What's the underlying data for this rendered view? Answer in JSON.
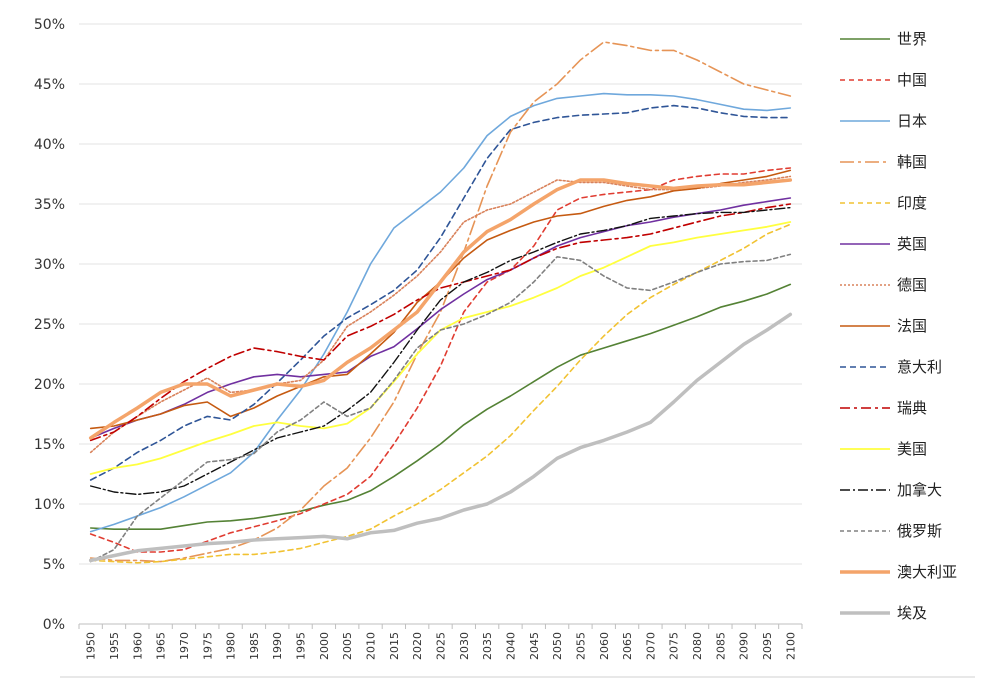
{
  "chart_data": {
    "type": "line",
    "title": "",
    "xlabel": "",
    "ylabel": "",
    "ylim": [
      0,
      50
    ],
    "y_ticks": [
      "0%",
      "5%",
      "10%",
      "15%",
      "20%",
      "25%",
      "30%",
      "35%",
      "40%",
      "45%",
      "50%"
    ],
    "x": [
      1950,
      1955,
      1960,
      1965,
      1970,
      1975,
      1980,
      1985,
      1990,
      1995,
      2000,
      2005,
      2010,
      2015,
      2020,
      2025,
      2030,
      2035,
      2040,
      2045,
      2050,
      2055,
      2060,
      2065,
      2070,
      2075,
      2080,
      2085,
      2090,
      2095,
      2100
    ],
    "grid": true,
    "legend_position": "right",
    "series": [
      {
        "name": "世界",
        "color": "#548235",
        "dash": "solid",
        "width": 1.6,
        "values": [
          8.0,
          7.9,
          7.9,
          7.9,
          8.2,
          8.5,
          8.6,
          8.8,
          9.1,
          9.4,
          9.9,
          10.3,
          11.1,
          12.3,
          13.6,
          15.0,
          16.6,
          17.9,
          19.0,
          20.2,
          21.4,
          22.4,
          23.0,
          23.6,
          24.2,
          24.9,
          25.6,
          26.4,
          26.9,
          27.5,
          28.3
        ]
      },
      {
        "name": "中国",
        "color": "#e03c31",
        "dash": "5,4",
        "width": 1.6,
        "values": [
          7.5,
          6.8,
          6.0,
          6.0,
          6.2,
          6.9,
          7.6,
          8.1,
          8.6,
          9.2,
          10.0,
          10.8,
          12.3,
          15.0,
          18.0,
          21.5,
          26.0,
          28.5,
          29.5,
          31.5,
          34.5,
          35.5,
          35.8,
          36.0,
          36.2,
          37.0,
          37.3,
          37.5,
          37.5,
          37.8,
          38.0
        ]
      },
      {
        "name": "日本",
        "color": "#6fa8dc",
        "dash": "solid",
        "width": 1.6,
        "values": [
          7.7,
          8.3,
          9.0,
          9.7,
          10.6,
          11.6,
          12.6,
          14.3,
          17.0,
          19.5,
          22.5,
          26.0,
          30.0,
          33.0,
          34.5,
          36.0,
          38.0,
          40.7,
          42.3,
          43.2,
          43.8,
          44.0,
          44.2,
          44.1,
          44.1,
          44.0,
          43.7,
          43.3,
          42.9,
          42.8,
          43.0
        ]
      },
      {
        "name": "韩国",
        "color": "#e69456",
        "dash": "14,4,3,4",
        "width": 1.6,
        "values": [
          5.5,
          5.3,
          5.3,
          5.2,
          5.5,
          5.9,
          6.3,
          7.0,
          8.0,
          9.5,
          11.5,
          13.0,
          15.5,
          18.5,
          22.5,
          26.0,
          31.0,
          36.5,
          41.0,
          43.5,
          45.0,
          47.0,
          48.5,
          48.2,
          47.8,
          47.8,
          47.0,
          46.0,
          45.0,
          44.5,
          44.0
        ]
      },
      {
        "name": "印度",
        "color": "#f1c232",
        "dash": "5,4",
        "width": 1.6,
        "values": [
          5.3,
          5.2,
          5.1,
          5.2,
          5.4,
          5.6,
          5.8,
          5.8,
          6.0,
          6.3,
          6.8,
          7.3,
          7.9,
          9.0,
          10.0,
          11.2,
          12.6,
          14.0,
          15.7,
          17.8,
          19.8,
          22.0,
          24.0,
          25.8,
          27.2,
          28.3,
          29.3,
          30.3,
          31.3,
          32.5,
          33.3
        ]
      },
      {
        "name": "英国",
        "color": "#7030a0",
        "dash": "solid",
        "width": 1.6,
        "values": [
          15.5,
          16.3,
          17.0,
          17.5,
          18.3,
          19.3,
          20.0,
          20.6,
          20.8,
          20.6,
          20.8,
          21.0,
          22.3,
          23.1,
          24.6,
          26.2,
          27.5,
          28.7,
          29.5,
          30.5,
          31.5,
          32.2,
          32.7,
          33.2,
          33.5,
          33.9,
          34.2,
          34.5,
          34.9,
          35.2,
          35.5
        ]
      },
      {
        "name": "德国",
        "color": "#d9825b",
        "dash": "2,2",
        "width": 1.6,
        "values": [
          14.3,
          16.0,
          17.3,
          18.5,
          19.5,
          20.5,
          19.3,
          19.5,
          20.0,
          20.3,
          22.0,
          24.8,
          26.0,
          27.4,
          29.0,
          31.0,
          33.5,
          34.5,
          35.0,
          36.0,
          37.0,
          36.8,
          36.8,
          36.5,
          36.2,
          36.2,
          36.3,
          36.5,
          36.8,
          37.0,
          37.3
        ]
      },
      {
        "name": "法国",
        "color": "#c55a11",
        "dash": "solid",
        "width": 1.6,
        "values": [
          16.3,
          16.5,
          17.0,
          17.5,
          18.2,
          18.5,
          17.3,
          18.0,
          19.0,
          19.8,
          20.6,
          20.8,
          22.5,
          24.3,
          26.8,
          28.5,
          30.5,
          32.0,
          32.8,
          33.5,
          34.0,
          34.2,
          34.8,
          35.3,
          35.6,
          36.1,
          36.3,
          36.7,
          37.0,
          37.3,
          37.8
        ]
      },
      {
        "name": "意大利",
        "color": "#2f5597",
        "dash": "6,4",
        "width": 1.6,
        "values": [
          12.0,
          13.0,
          14.3,
          15.3,
          16.5,
          17.3,
          17.0,
          18.3,
          20.1,
          22.0,
          24.0,
          25.5,
          26.6,
          27.8,
          29.5,
          32.2,
          35.5,
          38.8,
          41.2,
          41.8,
          42.2,
          42.4,
          42.5,
          42.6,
          43.0,
          43.2,
          43.0,
          42.6,
          42.3,
          42.2,
          42.2
        ]
      },
      {
        "name": "瑞典",
        "color": "#c00000",
        "dash": "10,4,3,4",
        "width": 1.6,
        "values": [
          15.3,
          16.0,
          17.3,
          18.8,
          20.2,
          21.3,
          22.3,
          23.0,
          22.7,
          22.3,
          22.0,
          24.0,
          24.8,
          25.8,
          27.0,
          28.0,
          28.5,
          29.0,
          29.5,
          30.5,
          31.3,
          31.8,
          32.0,
          32.2,
          32.5,
          33.0,
          33.5,
          34.0,
          34.3,
          34.7,
          35.0
        ]
      },
      {
        "name": "美国",
        "color": "#ffff3f",
        "dash": "solid",
        "width": 1.8,
        "values": [
          12.5,
          13.0,
          13.3,
          13.8,
          14.5,
          15.2,
          15.8,
          16.5,
          16.8,
          16.5,
          16.3,
          16.7,
          18.0,
          20.2,
          22.5,
          24.5,
          25.5,
          26.0,
          26.5,
          27.2,
          28.0,
          29.0,
          29.7,
          30.6,
          31.5,
          31.8,
          32.2,
          32.5,
          32.8,
          33.1,
          33.5
        ]
      },
      {
        "name": "加拿大",
        "color": "#111111",
        "dash": "10,3,2,3",
        "width": 1.4,
        "values": [
          11.5,
          11.0,
          10.8,
          11.0,
          11.5,
          12.5,
          13.5,
          14.5,
          15.5,
          16.0,
          16.5,
          17.8,
          19.3,
          21.8,
          24.5,
          27.0,
          28.5,
          29.3,
          30.3,
          31.0,
          31.8,
          32.5,
          32.8,
          33.2,
          33.8,
          34.0,
          34.2,
          34.3,
          34.3,
          34.5,
          34.7
        ]
      },
      {
        "name": "俄罗斯",
        "color": "#808080",
        "dash": "4,3",
        "width": 1.6,
        "values": [
          5.2,
          6.2,
          9.0,
          10.5,
          12.0,
          13.5,
          13.7,
          14.2,
          16.0,
          17.0,
          18.5,
          17.3,
          18.0,
          20.3,
          23.0,
          24.5,
          25.0,
          25.8,
          26.8,
          28.5,
          30.6,
          30.3,
          29.0,
          28.0,
          27.8,
          28.5,
          29.3,
          30.0,
          30.2,
          30.3,
          30.8
        ]
      },
      {
        "name": "澳大利亚",
        "color": "#f4a46a",
        "dash": "solid",
        "width": 3.5,
        "values": [
          15.5,
          16.8,
          18.0,
          19.3,
          20.0,
          20.0,
          19.0,
          19.5,
          20.0,
          19.8,
          20.3,
          21.8,
          23.0,
          24.5,
          26.0,
          28.5,
          31.0,
          32.7,
          33.7,
          35.0,
          36.2,
          37.0,
          37.0,
          36.7,
          36.5,
          36.3,
          36.5,
          36.6,
          36.6,
          36.8,
          37.0
        ]
      },
      {
        "name": "埃及",
        "color": "#bfbfbf",
        "dash": "solid",
        "width": 3.5,
        "values": [
          5.3,
          5.7,
          6.1,
          6.3,
          6.5,
          6.7,
          6.8,
          7.0,
          7.1,
          7.2,
          7.3,
          7.1,
          7.6,
          7.8,
          8.4,
          8.8,
          9.5,
          10.0,
          11.0,
          12.3,
          13.8,
          14.7,
          15.3,
          16.0,
          16.8,
          18.5,
          20.3,
          21.8,
          23.3,
          24.5,
          25.8
        ]
      }
    ]
  }
}
